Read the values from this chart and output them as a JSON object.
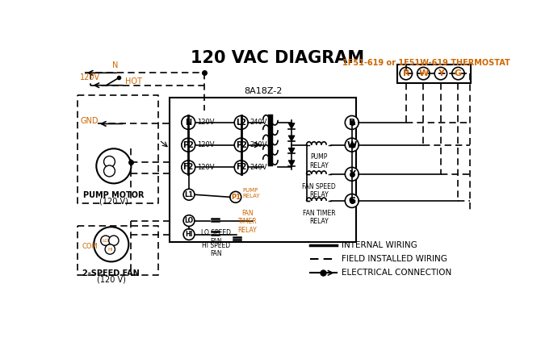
{
  "title": "120 VAC DIAGRAM",
  "subtitle": "1F51-619 or 1F51W-619 THERMOSTAT",
  "box_label": "8A18Z-2",
  "bg_color": "#ffffff",
  "line_color": "#000000",
  "orange_color": "#cc6600",
  "thermostat_labels": [
    "R",
    "W",
    "Y",
    "G"
  ],
  "terminal_labels_left": [
    "N",
    "P2",
    "F2"
  ],
  "terminal_labels_right": [
    "L2",
    "P2",
    "F2"
  ],
  "terminal_voltages_left": [
    "120V",
    "120V",
    "120V"
  ],
  "terminal_voltages_right": [
    "240V",
    "240V",
    "240V"
  ],
  "legend_items": [
    "INTERNAL WIRING",
    "FIELD INSTALLED WIRING",
    "ELECTRICAL CONNECTION"
  ]
}
